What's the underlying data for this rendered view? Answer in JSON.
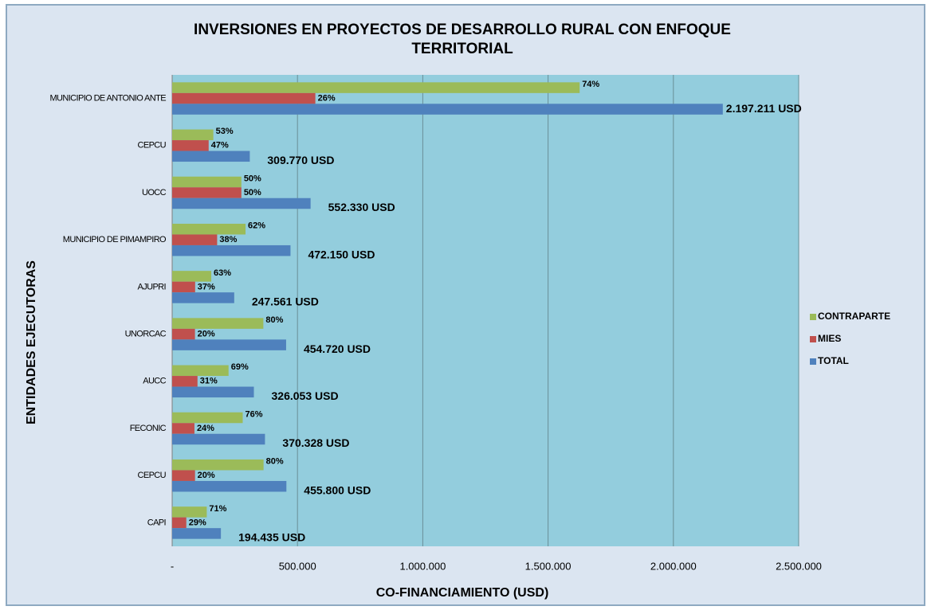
{
  "chart_data": {
    "type": "bar",
    "orientation": "horizontal",
    "title": "INVERSIONES EN PROYECTOS DE DESARROLLO RURAL CON ENFOQUE TERRITORIAL",
    "x_label": "CO-FINANCIAMIENTO  (USD)",
    "y_label": "ENTIDADES  EJECUTORAS",
    "categories": [
      "MUNICIPIO DE ANTONIO ANTE",
      "CEPCU",
      "UOCC",
      "MUNICIPIO DE PIMAMPIRO",
      "AJUPRI",
      "UNORCAC",
      "AUCC",
      "FECONIC",
      "CEPCU",
      "CAPI"
    ],
    "series": [
      {
        "name": "CONTRAPARTE",
        "color": "#9bbb59",
        "values": [
          1625936,
          164178,
          276165,
          292733,
          155963,
          363776,
          224977,
          281449,
          364640,
          138049
        ],
        "value_labels": [
          "74%",
          "53%",
          "50%",
          "62%",
          "63%",
          "80%",
          "69%",
          "76%",
          "80%",
          "71%"
        ]
      },
      {
        "name": "MIES",
        "color": "#c0504d",
        "values": [
          571275,
          145592,
          276165,
          179417,
          91598,
          90944,
          101076,
          88879,
          91160,
          56386
        ],
        "value_labels": [
          "26%",
          "47%",
          "50%",
          "38%",
          "37%",
          "20%",
          "31%",
          "24%",
          "20%",
          "29%"
        ]
      },
      {
        "name": "TOTAL",
        "color": "#4f81bd",
        "values": [
          2197211,
          309770,
          552330,
          472150,
          247561,
          454720,
          326053,
          370328,
          455800,
          194435
        ],
        "value_labels": [
          "2.197.211 USD",
          "309.770 USD",
          "552.330 USD",
          "472.150 USD",
          "247.561 USD",
          "454.720 USD",
          "326.053 USD",
          "370.328 USD",
          "455.800 USD",
          "194.435 USD"
        ]
      }
    ],
    "xlim": [
      0,
      2500000
    ],
    "xticks": [
      {
        "value": 0,
        "label": "-"
      },
      {
        "value": 500000,
        "label": "500.000"
      },
      {
        "value": 1000000,
        "label": "1.000.000"
      },
      {
        "value": 1500000,
        "label": "1.500.000"
      },
      {
        "value": 2000000,
        "label": "2.000.000"
      },
      {
        "value": 2500000,
        "label": "2.500.000"
      }
    ],
    "grid": true,
    "legend": "right"
  }
}
